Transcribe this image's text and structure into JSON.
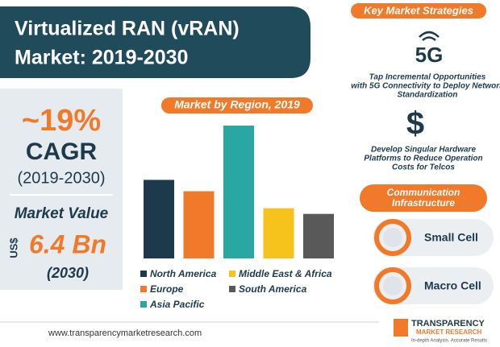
{
  "header": {
    "title_lines": [
      "Virtualized RAN (vRAN)",
      "Market: 2019-2030"
    ]
  },
  "highlights": {
    "cagr_value": "~19%",
    "cagr_label": "CAGR",
    "cagr_period": "(2019-2030)",
    "market_value_label": "Market Value",
    "currency": "US$",
    "market_value": "6.4 Bn",
    "market_value_year": "(2030)"
  },
  "chart_data": {
    "type": "bar",
    "title": "Market by Region, 2019",
    "categories": [
      "North America",
      "Europe",
      "Asia Pacific",
      "Middle East & Africa",
      "South America"
    ],
    "values": [
      97,
      83,
      164,
      62,
      55
    ],
    "colors": [
      "#1d3a4c",
      "#f07a2a",
      "#28a7a3",
      "#f6c21c",
      "#595959"
    ]
  },
  "strategies": {
    "heading": "Key Market Strategies",
    "icon_label": "5G",
    "icon_symbol": "$",
    "items": [
      {
        "lines": [
          "Tap Incremental Opportunities",
          "with 5G Connectivity to Deploy Network",
          "Standardization"
        ]
      },
      {
        "lines": [
          "Develop Singular Hardware",
          "Platforms to Reduce Operation",
          "Costs for Telcos"
        ]
      }
    ]
  },
  "infrastructure": {
    "heading_lines": [
      "Communication",
      "Infrastructure"
    ],
    "items": [
      "Small Cell",
      "Macro Cell"
    ]
  },
  "footer": {
    "url": "www.transparencymarketresearch.com",
    "logo_lines": [
      "TRANSPARENCY",
      "MARKET RESEARCH",
      "In-depth Analysis. Accurate Results"
    ]
  }
}
